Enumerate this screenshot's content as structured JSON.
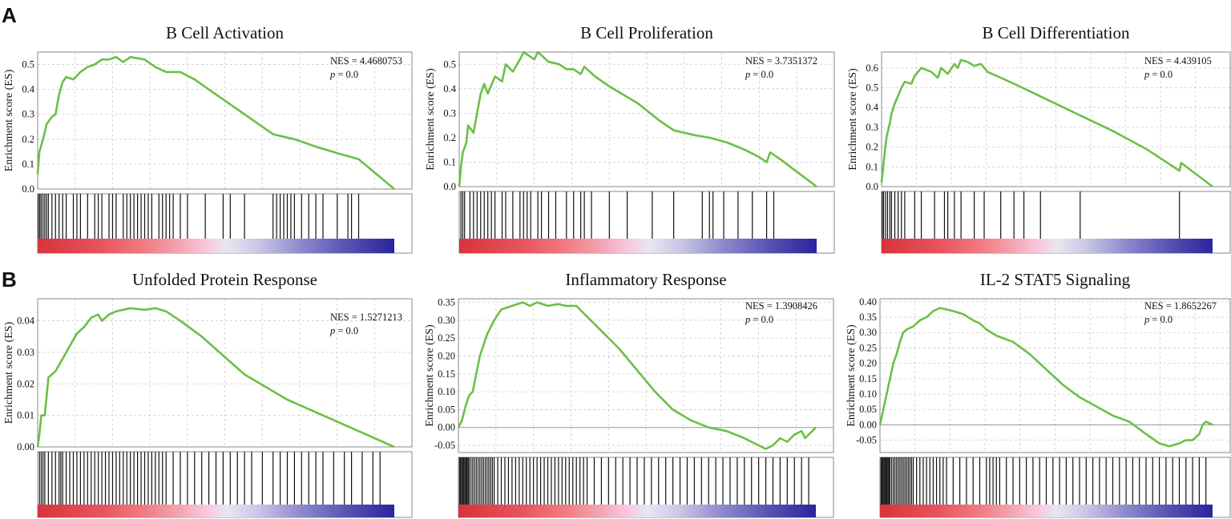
{
  "panel_labels": [
    "A",
    "B"
  ],
  "colors": {
    "es_line": "#6cbf47",
    "grid": "#cccccc",
    "hit": "#111111",
    "frame": "#888888"
  },
  "chart_data": [
    {
      "type": "line",
      "title": "B Cell Activation",
      "ylabel": "Enrichment score (ES)",
      "ylim": [
        0.0,
        0.55
      ],
      "yticks": [
        "0.0",
        "0.1",
        "0.2",
        "0.3",
        "0.4",
        "0.5"
      ],
      "yvals": [
        0.0,
        0.1,
        0.2,
        0.3,
        0.4,
        0.5
      ],
      "nes_label": "NES = 4.4680753",
      "p_prefix": "p",
      "p_value": " = 0.0",
      "es_curve": [
        [
          0,
          0.06
        ],
        [
          0.005,
          0.15
        ],
        [
          0.015,
          0.2
        ],
        [
          0.025,
          0.26
        ],
        [
          0.04,
          0.29
        ],
        [
          0.05,
          0.3
        ],
        [
          0.06,
          0.38
        ],
        [
          0.07,
          0.43
        ],
        [
          0.08,
          0.45
        ],
        [
          0.1,
          0.44
        ],
        [
          0.12,
          0.47
        ],
        [
          0.14,
          0.49
        ],
        [
          0.16,
          0.5
        ],
        [
          0.18,
          0.52
        ],
        [
          0.2,
          0.52
        ],
        [
          0.22,
          0.53
        ],
        [
          0.24,
          0.51
        ],
        [
          0.26,
          0.53
        ],
        [
          0.3,
          0.52
        ],
        [
          0.33,
          0.49
        ],
        [
          0.36,
          0.47
        ],
        [
          0.4,
          0.47
        ],
        [
          0.44,
          0.44
        ],
        [
          0.5,
          0.38
        ],
        [
          0.58,
          0.3
        ],
        [
          0.66,
          0.22
        ],
        [
          0.72,
          0.2
        ],
        [
          0.78,
          0.17
        ],
        [
          0.85,
          0.14
        ],
        [
          0.9,
          0.12
        ],
        [
          1.0,
          0.0
        ]
      ],
      "hits": [
        0.002,
        0.006,
        0.01,
        0.015,
        0.02,
        0.025,
        0.03,
        0.04,
        0.05,
        0.06,
        0.07,
        0.08,
        0.1,
        0.11,
        0.12,
        0.14,
        0.16,
        0.17,
        0.18,
        0.2,
        0.21,
        0.22,
        0.24,
        0.25,
        0.26,
        0.27,
        0.28,
        0.29,
        0.3,
        0.31,
        0.32,
        0.34,
        0.35,
        0.36,
        0.37,
        0.38,
        0.4,
        0.42,
        0.47,
        0.52,
        0.54,
        0.58,
        0.66,
        0.67,
        0.68,
        0.69,
        0.7,
        0.71,
        0.72,
        0.74,
        0.76,
        0.78,
        0.8,
        0.84,
        0.87,
        0.88,
        0.9
      ]
    },
    {
      "type": "line",
      "title": "B Cell Proliferation",
      "ylabel": "Enrichment score (ES)",
      "ylim": [
        0.0,
        0.55
      ],
      "yticks": [
        "0.0",
        "0.1",
        "0.2",
        "0.3",
        "0.4",
        "0.5"
      ],
      "yvals": [
        0.0,
        0.1,
        0.2,
        0.3,
        0.4,
        0.5
      ],
      "nes_label": "NES = 3.7351372",
      "p_prefix": "p",
      "p_value": " = 0.0",
      "es_curve": [
        [
          0,
          0.0
        ],
        [
          0.005,
          0.08
        ],
        [
          0.01,
          0.14
        ],
        [
          0.02,
          0.18
        ],
        [
          0.025,
          0.25
        ],
        [
          0.04,
          0.22
        ],
        [
          0.05,
          0.3
        ],
        [
          0.06,
          0.38
        ],
        [
          0.07,
          0.42
        ],
        [
          0.08,
          0.38
        ],
        [
          0.1,
          0.45
        ],
        [
          0.12,
          0.43
        ],
        [
          0.13,
          0.5
        ],
        [
          0.15,
          0.47
        ],
        [
          0.17,
          0.52
        ],
        [
          0.18,
          0.55
        ],
        [
          0.2,
          0.53
        ],
        [
          0.21,
          0.52
        ],
        [
          0.22,
          0.55
        ],
        [
          0.25,
          0.51
        ],
        [
          0.28,
          0.5
        ],
        [
          0.3,
          0.48
        ],
        [
          0.32,
          0.48
        ],
        [
          0.34,
          0.46
        ],
        [
          0.35,
          0.49
        ],
        [
          0.38,
          0.45
        ],
        [
          0.42,
          0.41
        ],
        [
          0.5,
          0.34
        ],
        [
          0.56,
          0.27
        ],
        [
          0.6,
          0.23
        ],
        [
          0.66,
          0.21
        ],
        [
          0.7,
          0.2
        ],
        [
          0.75,
          0.18
        ],
        [
          0.8,
          0.15
        ],
        [
          0.84,
          0.12
        ],
        [
          0.86,
          0.1
        ],
        [
          0.87,
          0.14
        ],
        [
          0.9,
          0.11
        ],
        [
          1.0,
          0.0
        ]
      ],
      "hits": [
        0.005,
        0.01,
        0.015,
        0.03,
        0.04,
        0.05,
        0.06,
        0.07,
        0.08,
        0.09,
        0.1,
        0.12,
        0.13,
        0.15,
        0.17,
        0.18,
        0.19,
        0.2,
        0.22,
        0.23,
        0.25,
        0.27,
        0.3,
        0.32,
        0.34,
        0.35,
        0.37,
        0.42,
        0.47,
        0.54,
        0.6,
        0.68,
        0.7,
        0.71,
        0.74,
        0.78,
        0.82,
        0.86,
        0.88
      ]
    },
    {
      "type": "line",
      "title": "B Cell Differentiation",
      "ylabel": "Enrichment score (ES)",
      "ylim": [
        0.0,
        0.68
      ],
      "yticks": [
        "0.0",
        "0.1",
        "0.2",
        "0.3",
        "0.4",
        "0.5",
        "0.6"
      ],
      "yvals": [
        0.0,
        0.1,
        0.2,
        0.3,
        0.4,
        0.5,
        0.6
      ],
      "nes_label": "NES = 4.439105",
      "p_prefix": "p",
      "p_value": " = 0.0",
      "es_curve": [
        [
          0,
          0.02
        ],
        [
          0.005,
          0.1
        ],
        [
          0.01,
          0.18
        ],
        [
          0.015,
          0.25
        ],
        [
          0.025,
          0.32
        ],
        [
          0.03,
          0.37
        ],
        [
          0.04,
          0.42
        ],
        [
          0.05,
          0.46
        ],
        [
          0.06,
          0.5
        ],
        [
          0.07,
          0.53
        ],
        [
          0.09,
          0.52
        ],
        [
          0.1,
          0.56
        ],
        [
          0.12,
          0.6
        ],
        [
          0.15,
          0.58
        ],
        [
          0.17,
          0.55
        ],
        [
          0.18,
          0.6
        ],
        [
          0.2,
          0.57
        ],
        [
          0.22,
          0.62
        ],
        [
          0.23,
          0.6
        ],
        [
          0.24,
          0.64
        ],
        [
          0.26,
          0.63
        ],
        [
          0.28,
          0.61
        ],
        [
          0.3,
          0.62
        ],
        [
          0.32,
          0.58
        ],
        [
          0.36,
          0.55
        ],
        [
          0.4,
          0.52
        ],
        [
          0.5,
          0.44
        ],
        [
          0.6,
          0.36
        ],
        [
          0.7,
          0.28
        ],
        [
          0.8,
          0.19
        ],
        [
          0.9,
          0.08
        ],
        [
          0.905,
          0.12
        ],
        [
          1.0,
          0.0
        ]
      ],
      "hits": [
        0.002,
        0.006,
        0.012,
        0.018,
        0.025,
        0.03,
        0.04,
        0.05,
        0.06,
        0.07,
        0.1,
        0.12,
        0.16,
        0.19,
        0.2,
        0.22,
        0.24,
        0.28,
        0.31,
        0.36,
        0.4,
        0.43,
        0.48,
        0.6,
        0.9
      ]
    },
    {
      "type": "line",
      "title": "Unfolded Protein Response",
      "ylabel": "Enrichment score (ES)",
      "ylim": [
        0.0,
        0.047
      ],
      "yticks": [
        "0.00",
        "0.01",
        "0.02",
        "0.03",
        "0.04"
      ],
      "yvals": [
        0.0,
        0.01,
        0.02,
        0.03,
        0.04
      ],
      "nes_label": "NES = 1.5271213",
      "p_prefix": "p",
      "p_value": " = 0.0",
      "es_curve": [
        [
          0,
          0.0
        ],
        [
          0.005,
          0.004
        ],
        [
          0.01,
          0.01
        ],
        [
          0.02,
          0.01
        ],
        [
          0.03,
          0.022
        ],
        [
          0.05,
          0.024
        ],
        [
          0.07,
          0.028
        ],
        [
          0.09,
          0.032
        ],
        [
          0.11,
          0.036
        ],
        [
          0.13,
          0.038
        ],
        [
          0.15,
          0.041
        ],
        [
          0.17,
          0.042
        ],
        [
          0.18,
          0.04
        ],
        [
          0.2,
          0.042
        ],
        [
          0.22,
          0.043
        ],
        [
          0.26,
          0.044
        ],
        [
          0.3,
          0.0435
        ],
        [
          0.33,
          0.044
        ],
        [
          0.36,
          0.043
        ],
        [
          0.4,
          0.04
        ],
        [
          0.46,
          0.035
        ],
        [
          0.52,
          0.029
        ],
        [
          0.58,
          0.023
        ],
        [
          0.64,
          0.019
        ],
        [
          0.7,
          0.015
        ],
        [
          0.76,
          0.012
        ],
        [
          0.82,
          0.009
        ],
        [
          0.86,
          0.007
        ],
        [
          0.9,
          0.005
        ],
        [
          0.94,
          0.003
        ],
        [
          1.0,
          0.0
        ]
      ],
      "hits": [
        0.005,
        0.01,
        0.015,
        0.02,
        0.03,
        0.04,
        0.05,
        0.06,
        0.065,
        0.07,
        0.08,
        0.09,
        0.1,
        0.11,
        0.12,
        0.13,
        0.14,
        0.15,
        0.16,
        0.17,
        0.18,
        0.19,
        0.2,
        0.21,
        0.22,
        0.23,
        0.24,
        0.25,
        0.26,
        0.27,
        0.28,
        0.29,
        0.3,
        0.31,
        0.32,
        0.33,
        0.34,
        0.35,
        0.36,
        0.38,
        0.4,
        0.42,
        0.44,
        0.46,
        0.48,
        0.5,
        0.52,
        0.54,
        0.56,
        0.58,
        0.6,
        0.63,
        0.66,
        0.68,
        0.7,
        0.72,
        0.74,
        0.76,
        0.78,
        0.8,
        0.83,
        0.86,
        0.88,
        0.91,
        0.94,
        0.96
      ]
    },
    {
      "type": "line",
      "title": "Inflammatory Response",
      "ylabel": "Enrichment score (ES)",
      "ylim": [
        -0.07,
        0.36
      ],
      "yticks": [
        "-0.05",
        "0.00",
        "0.05",
        "0.10",
        "0.15",
        "0.20",
        "0.25",
        "0.30",
        "0.35"
      ],
      "yvals": [
        -0.05,
        0.0,
        0.05,
        0.1,
        0.15,
        0.2,
        0.25,
        0.3,
        0.35
      ],
      "nes_label": "NES = 1.3908426",
      "p_prefix": "p",
      "p_value": " = 0.0",
      "es_curve": [
        [
          0,
          0.0
        ],
        [
          0.01,
          0.02
        ],
        [
          0.02,
          0.06
        ],
        [
          0.03,
          0.09
        ],
        [
          0.04,
          0.1
        ],
        [
          0.05,
          0.15
        ],
        [
          0.06,
          0.2
        ],
        [
          0.08,
          0.26
        ],
        [
          0.1,
          0.3
        ],
        [
          0.12,
          0.33
        ],
        [
          0.15,
          0.34
        ],
        [
          0.18,
          0.35
        ],
        [
          0.2,
          0.34
        ],
        [
          0.22,
          0.35
        ],
        [
          0.25,
          0.34
        ],
        [
          0.28,
          0.345
        ],
        [
          0.3,
          0.34
        ],
        [
          0.33,
          0.34
        ],
        [
          0.35,
          0.32
        ],
        [
          0.4,
          0.27
        ],
        [
          0.45,
          0.22
        ],
        [
          0.5,
          0.16
        ],
        [
          0.55,
          0.1
        ],
        [
          0.6,
          0.05
        ],
        [
          0.65,
          0.02
        ],
        [
          0.7,
          0.0
        ],
        [
          0.75,
          -0.01
        ],
        [
          0.8,
          -0.03
        ],
        [
          0.84,
          -0.05
        ],
        [
          0.86,
          -0.06
        ],
        [
          0.88,
          -0.05
        ],
        [
          0.9,
          -0.03
        ],
        [
          0.92,
          -0.04
        ],
        [
          0.94,
          -0.02
        ],
        [
          0.96,
          -0.01
        ],
        [
          0.97,
          -0.03
        ],
        [
          1.0,
          0.0
        ]
      ],
      "hits": [
        0.003,
        0.006,
        0.009,
        0.012,
        0.015,
        0.018,
        0.021,
        0.024,
        0.027,
        0.03,
        0.035,
        0.04,
        0.045,
        0.05,
        0.055,
        0.06,
        0.065,
        0.07,
        0.075,
        0.08,
        0.085,
        0.09,
        0.095,
        0.1,
        0.11,
        0.12,
        0.13,
        0.14,
        0.15,
        0.16,
        0.17,
        0.18,
        0.19,
        0.2,
        0.21,
        0.22,
        0.23,
        0.24,
        0.25,
        0.26,
        0.27,
        0.28,
        0.29,
        0.3,
        0.31,
        0.32,
        0.33,
        0.34,
        0.35,
        0.36,
        0.38,
        0.4,
        0.42,
        0.44,
        0.46,
        0.48,
        0.5,
        0.52,
        0.54,
        0.56,
        0.58,
        0.6,
        0.62,
        0.64,
        0.66,
        0.68,
        0.7,
        0.72,
        0.74,
        0.76,
        0.78,
        0.8,
        0.82,
        0.84,
        0.86,
        0.88,
        0.9,
        0.92,
        0.94,
        0.96,
        0.98
      ]
    },
    {
      "type": "line",
      "title": "IL-2 STAT5 Signaling",
      "ylabel": "Enrichment score (ES)",
      "ylim": [
        -0.09,
        0.41
      ],
      "yticks": [
        "-0.05",
        "0.00",
        "0.05",
        "0.10",
        "0.15",
        "0.20",
        "0.25",
        "0.30",
        "0.35",
        "0.40"
      ],
      "yvals": [
        -0.05,
        0.0,
        0.05,
        0.1,
        0.15,
        0.2,
        0.25,
        0.3,
        0.35,
        0.4
      ],
      "nes_label": "NES = 1.8652267",
      "p_prefix": "p",
      "p_value": " = 0.0",
      "es_curve": [
        [
          0,
          0.0
        ],
        [
          0.01,
          0.05
        ],
        [
          0.02,
          0.1
        ],
        [
          0.03,
          0.15
        ],
        [
          0.04,
          0.2
        ],
        [
          0.05,
          0.23
        ],
        [
          0.06,
          0.27
        ],
        [
          0.07,
          0.3
        ],
        [
          0.08,
          0.31
        ],
        [
          0.1,
          0.32
        ],
        [
          0.12,
          0.34
        ],
        [
          0.14,
          0.35
        ],
        [
          0.16,
          0.37
        ],
        [
          0.18,
          0.38
        ],
        [
          0.2,
          0.375
        ],
        [
          0.22,
          0.37
        ],
        [
          0.25,
          0.36
        ],
        [
          0.28,
          0.34
        ],
        [
          0.3,
          0.33
        ],
        [
          0.32,
          0.31
        ],
        [
          0.35,
          0.29
        ],
        [
          0.4,
          0.27
        ],
        [
          0.45,
          0.23
        ],
        [
          0.5,
          0.18
        ],
        [
          0.55,
          0.13
        ],
        [
          0.6,
          0.09
        ],
        [
          0.65,
          0.06
        ],
        [
          0.7,
          0.03
        ],
        [
          0.75,
          0.01
        ],
        [
          0.8,
          -0.03
        ],
        [
          0.84,
          -0.06
        ],
        [
          0.87,
          -0.07
        ],
        [
          0.9,
          -0.06
        ],
        [
          0.92,
          -0.05
        ],
        [
          0.94,
          -0.05
        ],
        [
          0.96,
          -0.03
        ],
        [
          0.97,
          0.0
        ],
        [
          0.98,
          0.01
        ],
        [
          1.0,
          0.0
        ]
      ],
      "hits": [
        0.003,
        0.006,
        0.009,
        0.012,
        0.015,
        0.018,
        0.021,
        0.024,
        0.027,
        0.03,
        0.035,
        0.04,
        0.045,
        0.05,
        0.055,
        0.06,
        0.065,
        0.07,
        0.075,
        0.08,
        0.085,
        0.09,
        0.095,
        0.1,
        0.11,
        0.12,
        0.13,
        0.14,
        0.15,
        0.16,
        0.17,
        0.18,
        0.19,
        0.2,
        0.22,
        0.24,
        0.26,
        0.28,
        0.3,
        0.32,
        0.33,
        0.34,
        0.35,
        0.36,
        0.38,
        0.4,
        0.42,
        0.44,
        0.46,
        0.48,
        0.5,
        0.52,
        0.54,
        0.56,
        0.58,
        0.6,
        0.62,
        0.64,
        0.66,
        0.68,
        0.7,
        0.72,
        0.74,
        0.76,
        0.78,
        0.8,
        0.82,
        0.84,
        0.86,
        0.88,
        0.9,
        0.92,
        0.94,
        0.96,
        0.98
      ]
    }
  ]
}
